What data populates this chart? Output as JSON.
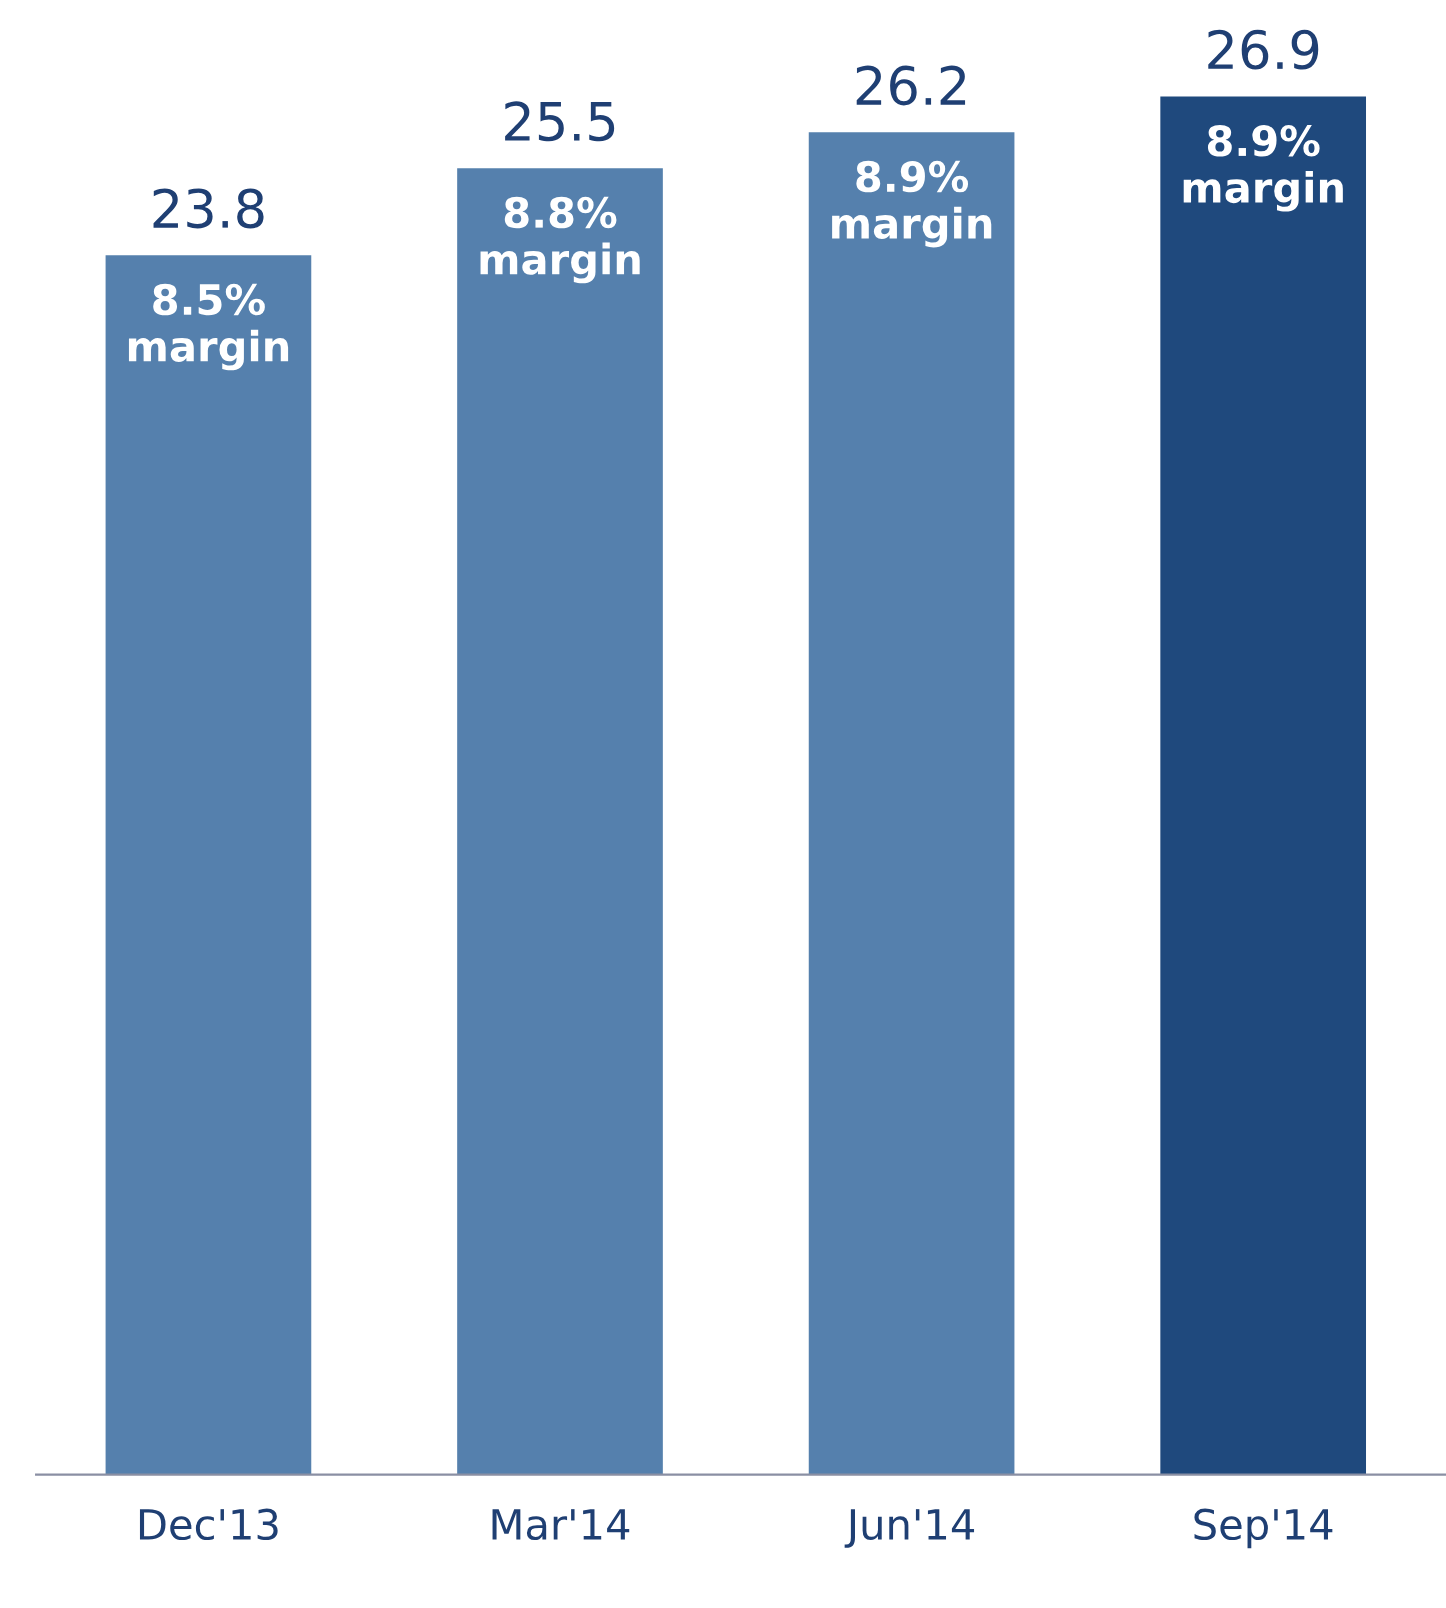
{
  "chart_data": {
    "type": "bar",
    "categories": [
      "Dec'13",
      "Mar'14",
      "Jun'14",
      "Sep'14"
    ],
    "values": [
      23.8,
      25.5,
      26.2,
      26.9
    ],
    "colors": [
      "#5580ad",
      "#5580ad",
      "#5580ad",
      "#1f497d"
    ],
    "tick_labels": "x",
    "data_labels": true,
    "grid": false,
    "legend": false,
    "annotations": [
      {
        "text": "8.5%\nmargin",
        "x": "Dec'13",
        "y": 23.8
      },
      {
        "text": "8.8%\nmargin",
        "x": "Mar'14",
        "y": 25.5
      },
      {
        "text": "8.9%\nmargin",
        "x": "Jun'14",
        "y": 26.2
      },
      {
        "text": "8.9%\nmargin",
        "x": "Sep'14",
        "y": 26.9
      }
    ]
  }
}
